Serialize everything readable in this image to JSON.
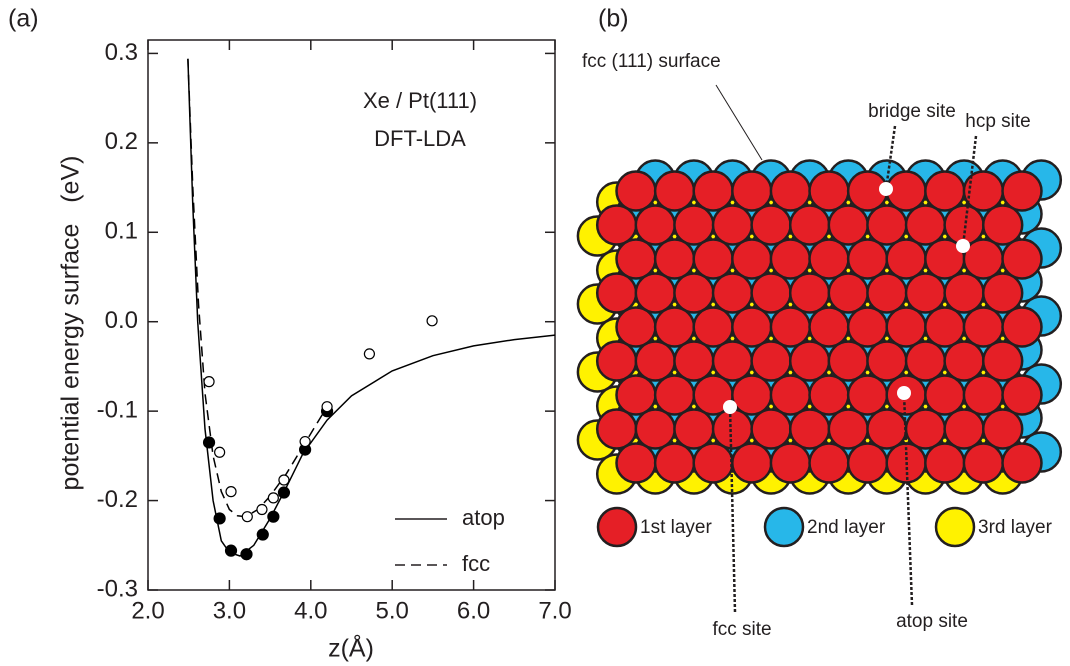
{
  "chart_data": {
    "type": "line",
    "panel_label": "(a)",
    "annotations": [
      "Xe / Pt(111)",
      "DFT-LDA"
    ],
    "x_label": "z(Å)",
    "y_label": "potential energy surface   (eV)",
    "xlim": [
      2,
      7
    ],
    "xticks": [
      {
        "value": 2,
        "label": "2.0"
      },
      {
        "value": 3,
        "label": "3.0"
      },
      {
        "value": 4,
        "label": "4.0"
      },
      {
        "value": 5,
        "label": "5.0"
      },
      {
        "value": 6,
        "label": "6.0"
      },
      {
        "value": 7,
        "label": "7.0"
      }
    ],
    "ylim": [
      -0.3,
      0.315
    ],
    "yticks": [
      0.3,
      0.2,
      0.1,
      {
        "value": 0,
        "label": "0.0"
      },
      -0.1,
      -0.2,
      -0.3
    ],
    "legend": "lower right",
    "series": [
      {
        "name": "atop",
        "color": "#000000",
        "dash": false,
        "marker": "filled",
        "x": [
          2.49,
          2.55,
          2.61,
          2.7,
          2.8,
          2.9,
          3.0,
          3.13,
          3.3,
          3.5,
          3.7,
          3.9,
          4.2,
          4.5,
          5.0,
          5.5,
          6.0,
          6.5,
          7.0
        ],
        "values": [
          0.294,
          0.13,
          0.0,
          -0.12,
          -0.2,
          -0.245,
          -0.258,
          -0.262,
          -0.25,
          -0.22,
          -0.185,
          -0.148,
          -0.11,
          -0.083,
          -0.055,
          -0.038,
          -0.027,
          -0.02,
          -0.015
        ],
        "marker_x": [
          2.75,
          2.88,
          3.02,
          3.21,
          3.41,
          3.54,
          3.67,
          3.93,
          4.2
        ],
        "marker_values": [
          -0.135,
          -0.22,
          -0.256,
          -0.26,
          -0.238,
          -0.218,
          -0.191,
          -0.143,
          -0.1
        ]
      },
      {
        "name": "fcc",
        "color": "#000000",
        "dash": true,
        "marker": "open",
        "x": [
          2.49,
          2.55,
          2.62,
          2.7,
          2.8,
          2.9,
          3.0,
          3.1,
          3.2,
          3.35,
          3.5,
          3.7,
          3.9,
          4.2
        ],
        "values": [
          0.294,
          0.15,
          0.02,
          -0.08,
          -0.15,
          -0.19,
          -0.21,
          -0.217,
          -0.218,
          -0.21,
          -0.195,
          -0.17,
          -0.14,
          -0.095
        ],
        "marker_x": [
          2.75,
          2.88,
          3.02,
          3.22,
          3.4,
          3.54,
          3.67,
          3.93,
          4.2,
          4.72,
          5.49
        ],
        "marker_values": [
          -0.067,
          -0.146,
          -0.19,
          -0.218,
          -0.21,
          -0.197,
          -0.177,
          -0.134,
          -0.095,
          -0.036,
          0.001
        ]
      }
    ]
  },
  "diagram": {
    "panel_label": "(b)",
    "surface_label": "fcc (111) surface",
    "sites": [
      "bridge site",
      "hcp site",
      "fcc site",
      "atop site"
    ],
    "layers": [
      "1st layer",
      "2nd layer",
      "3rd layer"
    ]
  }
}
